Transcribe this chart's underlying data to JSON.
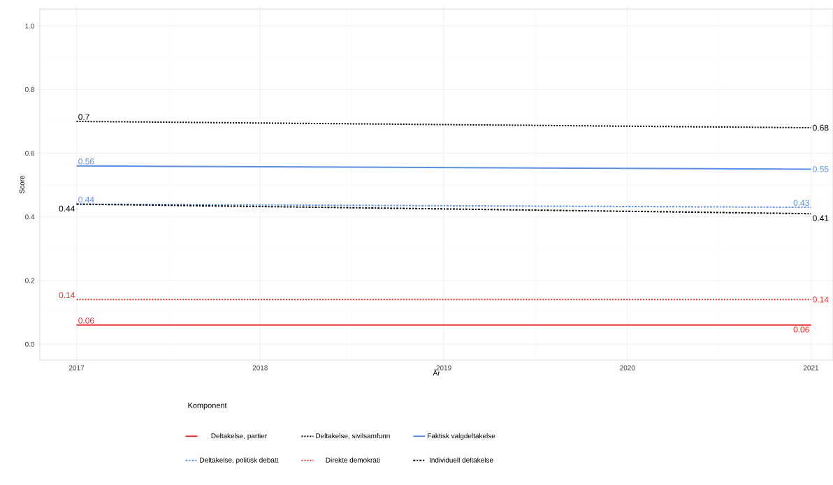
{
  "chart_data": {
    "type": "line",
    "xlabel": "År",
    "ylabel": "Score",
    "legend_title": "Komponent",
    "x": [
      2017,
      2021
    ],
    "series": [
      {
        "name": "Deltakelse, partier",
        "color": "#e8312f",
        "line_style": "solid",
        "values": [
          0.06,
          0.06
        ]
      },
      {
        "name": "Deltakelse, sivilsamfunn",
        "color": "#000000",
        "line_style": "dotted",
        "values": [
          0.7,
          0.68
        ]
      },
      {
        "name": "Faktisk valgdeltakelse",
        "color": "#5b8ee6",
        "line_style": "solid",
        "values": [
          0.56,
          0.55
        ]
      },
      {
        "name": "Deltakelse, politisk debatt",
        "color": "#5b8ee6",
        "line_style": "dashdot",
        "values": [
          0.44,
          0.43
        ]
      },
      {
        "name": "Direkte demokrati",
        "color": "#e8312f",
        "line_style": "dotted",
        "values": [
          0.14,
          0.14
        ]
      },
      {
        "name": "Individuell deltakelse",
        "color": "#000000",
        "line_style": "dashdot",
        "values": [
          0.44,
          0.41
        ]
      }
    ],
    "data_labels": true,
    "xlim": [
      2016.8,
      2021.12
    ],
    "ylim": [
      -0.05,
      1.053
    ],
    "xticks": [
      2017,
      2018,
      2019,
      2020,
      2021
    ],
    "yticks": [
      {
        "value": 0,
        "label": "0.0"
      },
      0.2,
      0.4,
      0.6,
      0.8,
      {
        "value": 1,
        "label": "1.0"
      }
    ],
    "grid": true,
    "legend": "bottom",
    "marker": "none"
  }
}
